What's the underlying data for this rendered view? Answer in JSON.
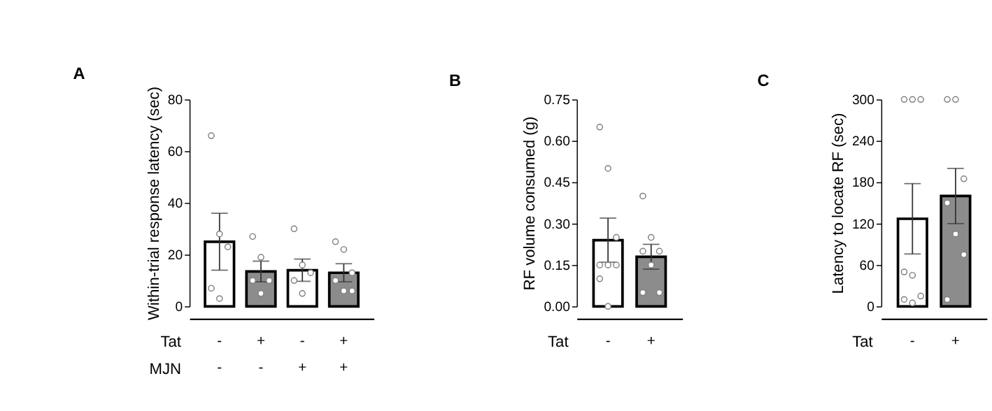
{
  "chart_data": [
    {
      "type": "bar",
      "title": "A",
      "ylabel": "Within-trial response latency (sec)",
      "categories": [
        "-\n-",
        "+\n-",
        "-\n+",
        "+\n+"
      ],
      "annotations": [
        "Tat",
        "MJN"
      ],
      "ylim": [
        0,
        80
      ],
      "yticks": [
        0,
        20,
        40,
        60,
        80
      ],
      "grid": false,
      "series": [
        {
          "values": [
            25,
            13.5,
            14,
            13
          ],
          "colors": [
            "#ffffff",
            "#8c8c8c",
            "#ffffff",
            "#8c8c8c"
          ],
          "errors": [
            11,
            4,
            4.3,
            3.5
          ]
        },
        {
          "type": "scatter",
          "color": "#808080",
          "x": [
            "-\n-",
            "-\n-",
            "-\n-",
            "-\n-",
            "-\n-",
            "+\n-",
            "+\n-",
            "+\n-",
            "+\n-",
            "+\n-",
            "-\n+",
            "-\n+",
            "-\n+",
            "-\n+",
            "-\n+",
            "+\n+",
            "+\n+",
            "+\n+",
            "+\n+",
            "+\n+",
            "+\n+"
          ],
          "values": [
            66,
            28,
            23,
            7,
            3,
            27,
            19,
            10,
            10,
            5,
            30,
            16,
            13,
            10,
            5,
            25,
            22,
            13,
            10,
            6,
            6
          ]
        }
      ]
    },
    {
      "type": "bar",
      "title": "B",
      "ylabel": "RF volume consumed (g)",
      "categories": [
        "-",
        "+"
      ],
      "annotations": [
        "Tat"
      ],
      "ylim": [
        0,
        0.75
      ],
      "yticks": [
        {
          "value": 0,
          "label": "0.00"
        },
        {
          "value": 0.15,
          "label": "0.15"
        },
        {
          "value": 0.3,
          "label": "0.30"
        },
        {
          "value": 0.45,
          "label": "0.45"
        },
        {
          "value": 0.6,
          "label": "0.60"
        },
        {
          "value": 0.75,
          "label": "0.75"
        }
      ],
      "grid": false,
      "series": [
        {
          "values": [
            0.24,
            0.18
          ],
          "colors": [
            "#ffffff",
            "#8c8c8c"
          ],
          "errors": [
            0.08,
            0.045
          ]
        },
        {
          "type": "scatter",
          "color": "#808080",
          "x": [
            "-",
            "-",
            "-",
            "-",
            "-",
            "-",
            "-",
            "-",
            "+",
            "+",
            "+",
            "+",
            "+",
            "+",
            "+"
          ],
          "values": [
            0.65,
            0.5,
            0.25,
            0.15,
            0.15,
            0.15,
            0.1,
            0,
            0.4,
            0.25,
            0.2,
            0.2,
            0.15,
            0.05,
            0.05
          ]
        }
      ]
    },
    {
      "type": "bar",
      "title": "C",
      "ylabel": "Latency to locate RF (sec)",
      "categories": [
        "-",
        "+"
      ],
      "annotations": [
        "Tat"
      ],
      "ylim": [
        0,
        300
      ],
      "yticks": [
        0,
        60,
        120,
        180,
        240,
        300
      ],
      "grid": false,
      "series": [
        {
          "values": [
            127,
            160
          ],
          "colors": [
            "#ffffff",
            "#8c8c8c"
          ],
          "errors": [
            51,
            40
          ]
        },
        {
          "type": "scatter",
          "color": "#808080",
          "x": [
            "-",
            "-",
            "-",
            "-",
            "-",
            "-",
            "-",
            "-",
            "+",
            "+",
            "+",
            "+",
            "+",
            "+",
            "+"
          ],
          "values": [
            300,
            300,
            300,
            50,
            45,
            15,
            10,
            5,
            300,
            300,
            185,
            150,
            105,
            75,
            10
          ]
        }
      ]
    }
  ]
}
